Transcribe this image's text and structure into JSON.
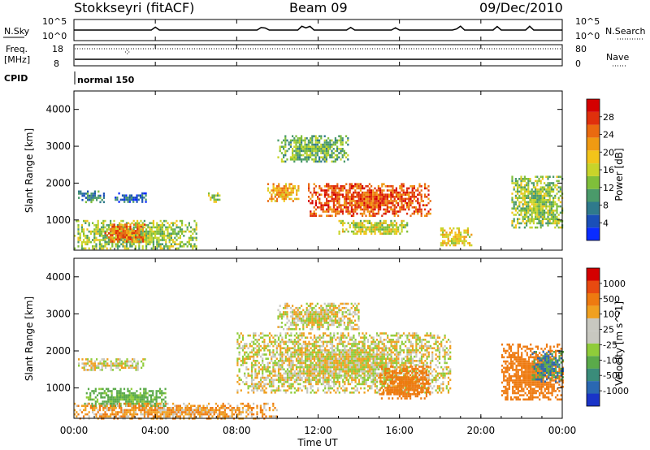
{
  "header": {
    "station": "Stokkseyri (fitACF)",
    "beam": "Beam 09",
    "date": "09/Dec/2010"
  },
  "noise_panel": {
    "left_label": "N.Sky",
    "right_label": "N.Search",
    "left_ticks": [
      "10^5",
      "10^0"
    ],
    "right_ticks": [
      "10^5",
      "10^0"
    ]
  },
  "freq_panel": {
    "left_label_line1": "Freq.",
    "left_label_line2": "[MHz]",
    "right_label": "Nave",
    "left_ticks": [
      "18",
      "8"
    ],
    "right_ticks": [
      "80",
      "0"
    ]
  },
  "cpid": {
    "label": "CPID",
    "value": "normal 150"
  },
  "x_axis": {
    "ticks": [
      "00:00",
      "04:00",
      "08:00",
      "12:00",
      "16:00",
      "20:00",
      "00:00"
    ],
    "label": "Time UT"
  },
  "colors": {
    "power": [
      "#0a2cff",
      "#1a4fb8",
      "#2f7a8c",
      "#4a9a6a",
      "#7fbf3a",
      "#c8d42a",
      "#f2c41a",
      "#f09a12",
      "#ea6a10",
      "#e0300c",
      "#d40000"
    ],
    "velocity": [
      "#1a34c8",
      "#2a68b2",
      "#3a8c7a",
      "#5aaa4a",
      "#8fcc3a",
      "#c8c8c0",
      "#c8c8c0",
      "#f0a020",
      "#ee7a10",
      "#e84a10",
      "#d40000"
    ]
  },
  "chart_data": [
    {
      "type": "heatmap",
      "title": "Power",
      "xlabel": "Time UT",
      "ylabel": "Slant Range [km]",
      "xlim": [
        "00:00",
        "24:00"
      ],
      "ylim": [
        180,
        4500
      ],
      "y_ticks": [
        1000,
        2000,
        3000,
        4000
      ],
      "colorbar": {
        "label": "Power [dB]",
        "range": [
          0,
          32
        ],
        "ticks": [
          4,
          8,
          12,
          16,
          20,
          24,
          28
        ],
        "tick_labels": [
          "4",
          "8",
          "12",
          "16",
          "20",
          "24",
          "28"
        ]
      },
      "regions": [
        {
          "t_start": 0.2,
          "t_end": 1.5,
          "range_km": [
            1500,
            1800
          ],
          "typical_db": 8
        },
        {
          "t_start": 2.0,
          "t_end": 3.5,
          "range_km": [
            1500,
            1750
          ],
          "typical_db": 6
        },
        {
          "t_start": 0.0,
          "t_end": 6.0,
          "range_km": [
            200,
            1000
          ],
          "typical_db": 14
        },
        {
          "t_start": 1.5,
          "t_end": 3.5,
          "range_km": [
            400,
            900
          ],
          "typical_db": 24
        },
        {
          "t_start": 6.5,
          "t_end": 7.2,
          "range_km": [
            1500,
            1750
          ],
          "typical_db": 14
        },
        {
          "t_start": 9.5,
          "t_end": 11.0,
          "range_km": [
            1500,
            2000
          ],
          "typical_db": 20
        },
        {
          "t_start": 10.0,
          "t_end": 13.5,
          "range_km": [
            2600,
            3300
          ],
          "typical_db": 12
        },
        {
          "t_start": 11.5,
          "t_end": 17.5,
          "range_km": [
            1100,
            2000
          ],
          "typical_db": 26
        },
        {
          "t_start": 13.0,
          "t_end": 16.5,
          "range_km": [
            600,
            1000
          ],
          "typical_db": 16
        },
        {
          "t_start": 18.0,
          "t_end": 19.5,
          "range_km": [
            300,
            800
          ],
          "typical_db": 18
        },
        {
          "t_start": 21.5,
          "t_end": 24.0,
          "range_km": [
            800,
            2200
          ],
          "typical_db": 14
        }
      ]
    },
    {
      "type": "heatmap",
      "title": "Velocity",
      "xlabel": "Time UT",
      "ylabel": "Slant Range [km]",
      "xlim": [
        "00:00",
        "24:00"
      ],
      "ylim": [
        180,
        4500
      ],
      "y_ticks": [
        1000,
        2000,
        3000,
        4000
      ],
      "colorbar": {
        "label": "Velocity [m s^-1]",
        "tick_labels": [
          "1000",
          "500",
          "100",
          "25",
          "-25",
          "-100",
          "-500",
          "-1000"
        ]
      },
      "regions": [
        {
          "t_start": 0.2,
          "t_end": 3.5,
          "range_km": [
            1500,
            1800
          ],
          "typical_ms": 0
        },
        {
          "t_start": 0.5,
          "t_end": 4.5,
          "range_km": [
            500,
            1000
          ],
          "typical_ms": 150
        },
        {
          "t_start": 0.0,
          "t_end": 10.0,
          "range_km": [
            200,
            600
          ],
          "typical_ms": -80
        },
        {
          "t_start": 8.0,
          "t_end": 18.5,
          "range_km": [
            900,
            2500
          ],
          "typical_ms": 0
        },
        {
          "t_start": 10.0,
          "t_end": 14.0,
          "range_km": [
            2600,
            3300
          ],
          "typical_ms": 0
        },
        {
          "t_start": 15.0,
          "t_end": 17.5,
          "range_km": [
            700,
            1600
          ],
          "typical_ms": -300
        },
        {
          "t_start": 21.0,
          "t_end": 24.0,
          "range_km": [
            700,
            2200
          ],
          "typical_ms": -300
        },
        {
          "t_start": 22.5,
          "t_end": 24.0,
          "range_km": [
            1200,
            2000
          ],
          "typical_ms": 500
        }
      ]
    }
  ]
}
